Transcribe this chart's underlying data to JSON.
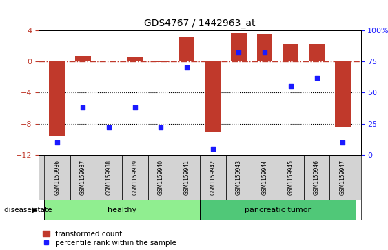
{
  "title": "GDS4767 / 1442963_at",
  "samples": [
    "GSM1159936",
    "GSM1159937",
    "GSM1159938",
    "GSM1159939",
    "GSM1159940",
    "GSM1159941",
    "GSM1159942",
    "GSM1159943",
    "GSM1159944",
    "GSM1159945",
    "GSM1159946",
    "GSM1159947"
  ],
  "transformed_count": [
    -9.5,
    0.7,
    0.1,
    0.5,
    -0.05,
    3.2,
    -9.0,
    3.6,
    3.5,
    2.2,
    2.2,
    -8.5
  ],
  "percentile_rank": [
    10,
    38,
    22,
    38,
    22,
    70,
    5,
    82,
    82,
    55,
    62,
    10
  ],
  "groups": [
    "healthy",
    "healthy",
    "healthy",
    "healthy",
    "healthy",
    "healthy",
    "pancreatic tumor",
    "pancreatic tumor",
    "pancreatic tumor",
    "pancreatic tumor",
    "pancreatic tumor",
    "pancreatic tumor"
  ],
  "left_ylim": [
    -12,
    4
  ],
  "right_ylim": [
    0,
    100
  ],
  "left_yticks": [
    -12,
    -8,
    -4,
    0,
    4
  ],
  "right_yticks": [
    0,
    25,
    50,
    75,
    100
  ],
  "right_yticklabels": [
    "0",
    "25",
    "50",
    "75",
    "100%"
  ],
  "bar_color": "#c0392b",
  "dot_color": "#1a1aff",
  "healthy_color": "#90ee90",
  "tumor_color": "#50c878",
  "bg_color": "#ffffff",
  "label_bg_color": "#d3d3d3",
  "dotted_line_vals": [
    -4,
    -8
  ],
  "zero_line_color": "#c0392b",
  "bar_width": 0.6,
  "title_fontsize": 10,
  "tick_fontsize": 8,
  "sample_fontsize": 5.5,
  "group_fontsize": 8,
  "legend_fontsize": 7.5
}
